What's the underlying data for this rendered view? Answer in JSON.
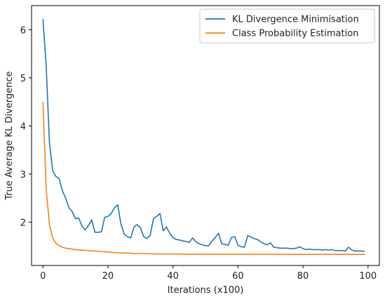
{
  "chart_data": {
    "type": "line",
    "title": "",
    "xlabel": "Iterations (x100)",
    "ylabel": "True Average KL Divergence",
    "xlim": [
      -3.5,
      103.5
    ],
    "ylim": [
      1.1,
      6.5
    ],
    "xticks": [
      0,
      20,
      40,
      60,
      80,
      100
    ],
    "yticks": [
      2,
      3,
      4,
      5,
      6
    ],
    "xtick_labels": [
      "0",
      "20",
      "40",
      "60",
      "80",
      "100"
    ],
    "ytick_labels": [
      "2",
      "3",
      "4",
      "5",
      "6"
    ],
    "grid": false,
    "legend_position": "top-right",
    "series": [
      {
        "name": "KL Divergence Minimisation",
        "color": "#1f77b4",
        "x": [
          0,
          1,
          2,
          3,
          4,
          5,
          6,
          7,
          8,
          9,
          10,
          11,
          12,
          13,
          14,
          15,
          16,
          17,
          18,
          19,
          20,
          21,
          22,
          23,
          24,
          25,
          26,
          27,
          28,
          29,
          30,
          31,
          32,
          33,
          34,
          35,
          36,
          37,
          38,
          39,
          40,
          41,
          42,
          43,
          44,
          45,
          46,
          47,
          48,
          49,
          50,
          51,
          52,
          53,
          54,
          55,
          56,
          57,
          58,
          59,
          60,
          61,
          62,
          63,
          64,
          65,
          66,
          67,
          68,
          69,
          70,
          71,
          72,
          73,
          74,
          75,
          76,
          77,
          78,
          79,
          80,
          81,
          82,
          83,
          84,
          85,
          86,
          87,
          88,
          89,
          90,
          91,
          92,
          93,
          94,
          95,
          96,
          97,
          98,
          99
        ],
        "y": [
          6.22,
          5.25,
          3.65,
          3.07,
          2.95,
          2.9,
          2.65,
          2.5,
          2.3,
          2.22,
          2.07,
          2.09,
          1.92,
          1.84,
          1.93,
          2.05,
          1.79,
          1.79,
          1.8,
          2.1,
          2.12,
          2.18,
          2.3,
          2.36,
          1.96,
          1.75,
          1.7,
          1.67,
          1.9,
          1.95,
          1.88,
          1.7,
          1.66,
          1.73,
          2.07,
          2.12,
          2.18,
          1.82,
          1.9,
          1.77,
          1.68,
          1.64,
          1.63,
          1.61,
          1.6,
          1.58,
          1.67,
          1.6,
          1.55,
          1.53,
          1.51,
          1.51,
          1.61,
          1.68,
          1.77,
          1.55,
          1.54,
          1.52,
          1.68,
          1.7,
          1.52,
          1.49,
          1.48,
          1.72,
          1.69,
          1.66,
          1.64,
          1.59,
          1.55,
          1.53,
          1.57,
          1.48,
          1.47,
          1.46,
          1.46,
          1.46,
          1.45,
          1.45,
          1.46,
          1.49,
          1.45,
          1.43,
          1.44,
          1.43,
          1.43,
          1.43,
          1.42,
          1.43,
          1.42,
          1.43,
          1.41,
          1.41,
          1.41,
          1.4,
          1.48,
          1.42,
          1.4,
          1.4,
          1.4,
          1.39
        ]
      },
      {
        "name": "Class Probability Estimation",
        "color": "#ff7f0e",
        "x": [
          0,
          1,
          2,
          3,
          4,
          5,
          6,
          7,
          8,
          9,
          10,
          12,
          14,
          16,
          18,
          20,
          22,
          24,
          26,
          28,
          30,
          32,
          35,
          40,
          45,
          50,
          55,
          60,
          65,
          70,
          75,
          80,
          85,
          90,
          95,
          99
        ],
        "y": [
          4.5,
          2.68,
          1.95,
          1.67,
          1.56,
          1.51,
          1.48,
          1.46,
          1.45,
          1.44,
          1.43,
          1.42,
          1.41,
          1.4,
          1.39,
          1.38,
          1.37,
          1.36,
          1.36,
          1.35,
          1.35,
          1.345,
          1.34,
          1.34,
          1.335,
          1.335,
          1.333,
          1.333,
          1.332,
          1.332,
          1.331,
          1.331,
          1.331,
          1.331,
          1.331,
          1.33
        ]
      }
    ]
  }
}
